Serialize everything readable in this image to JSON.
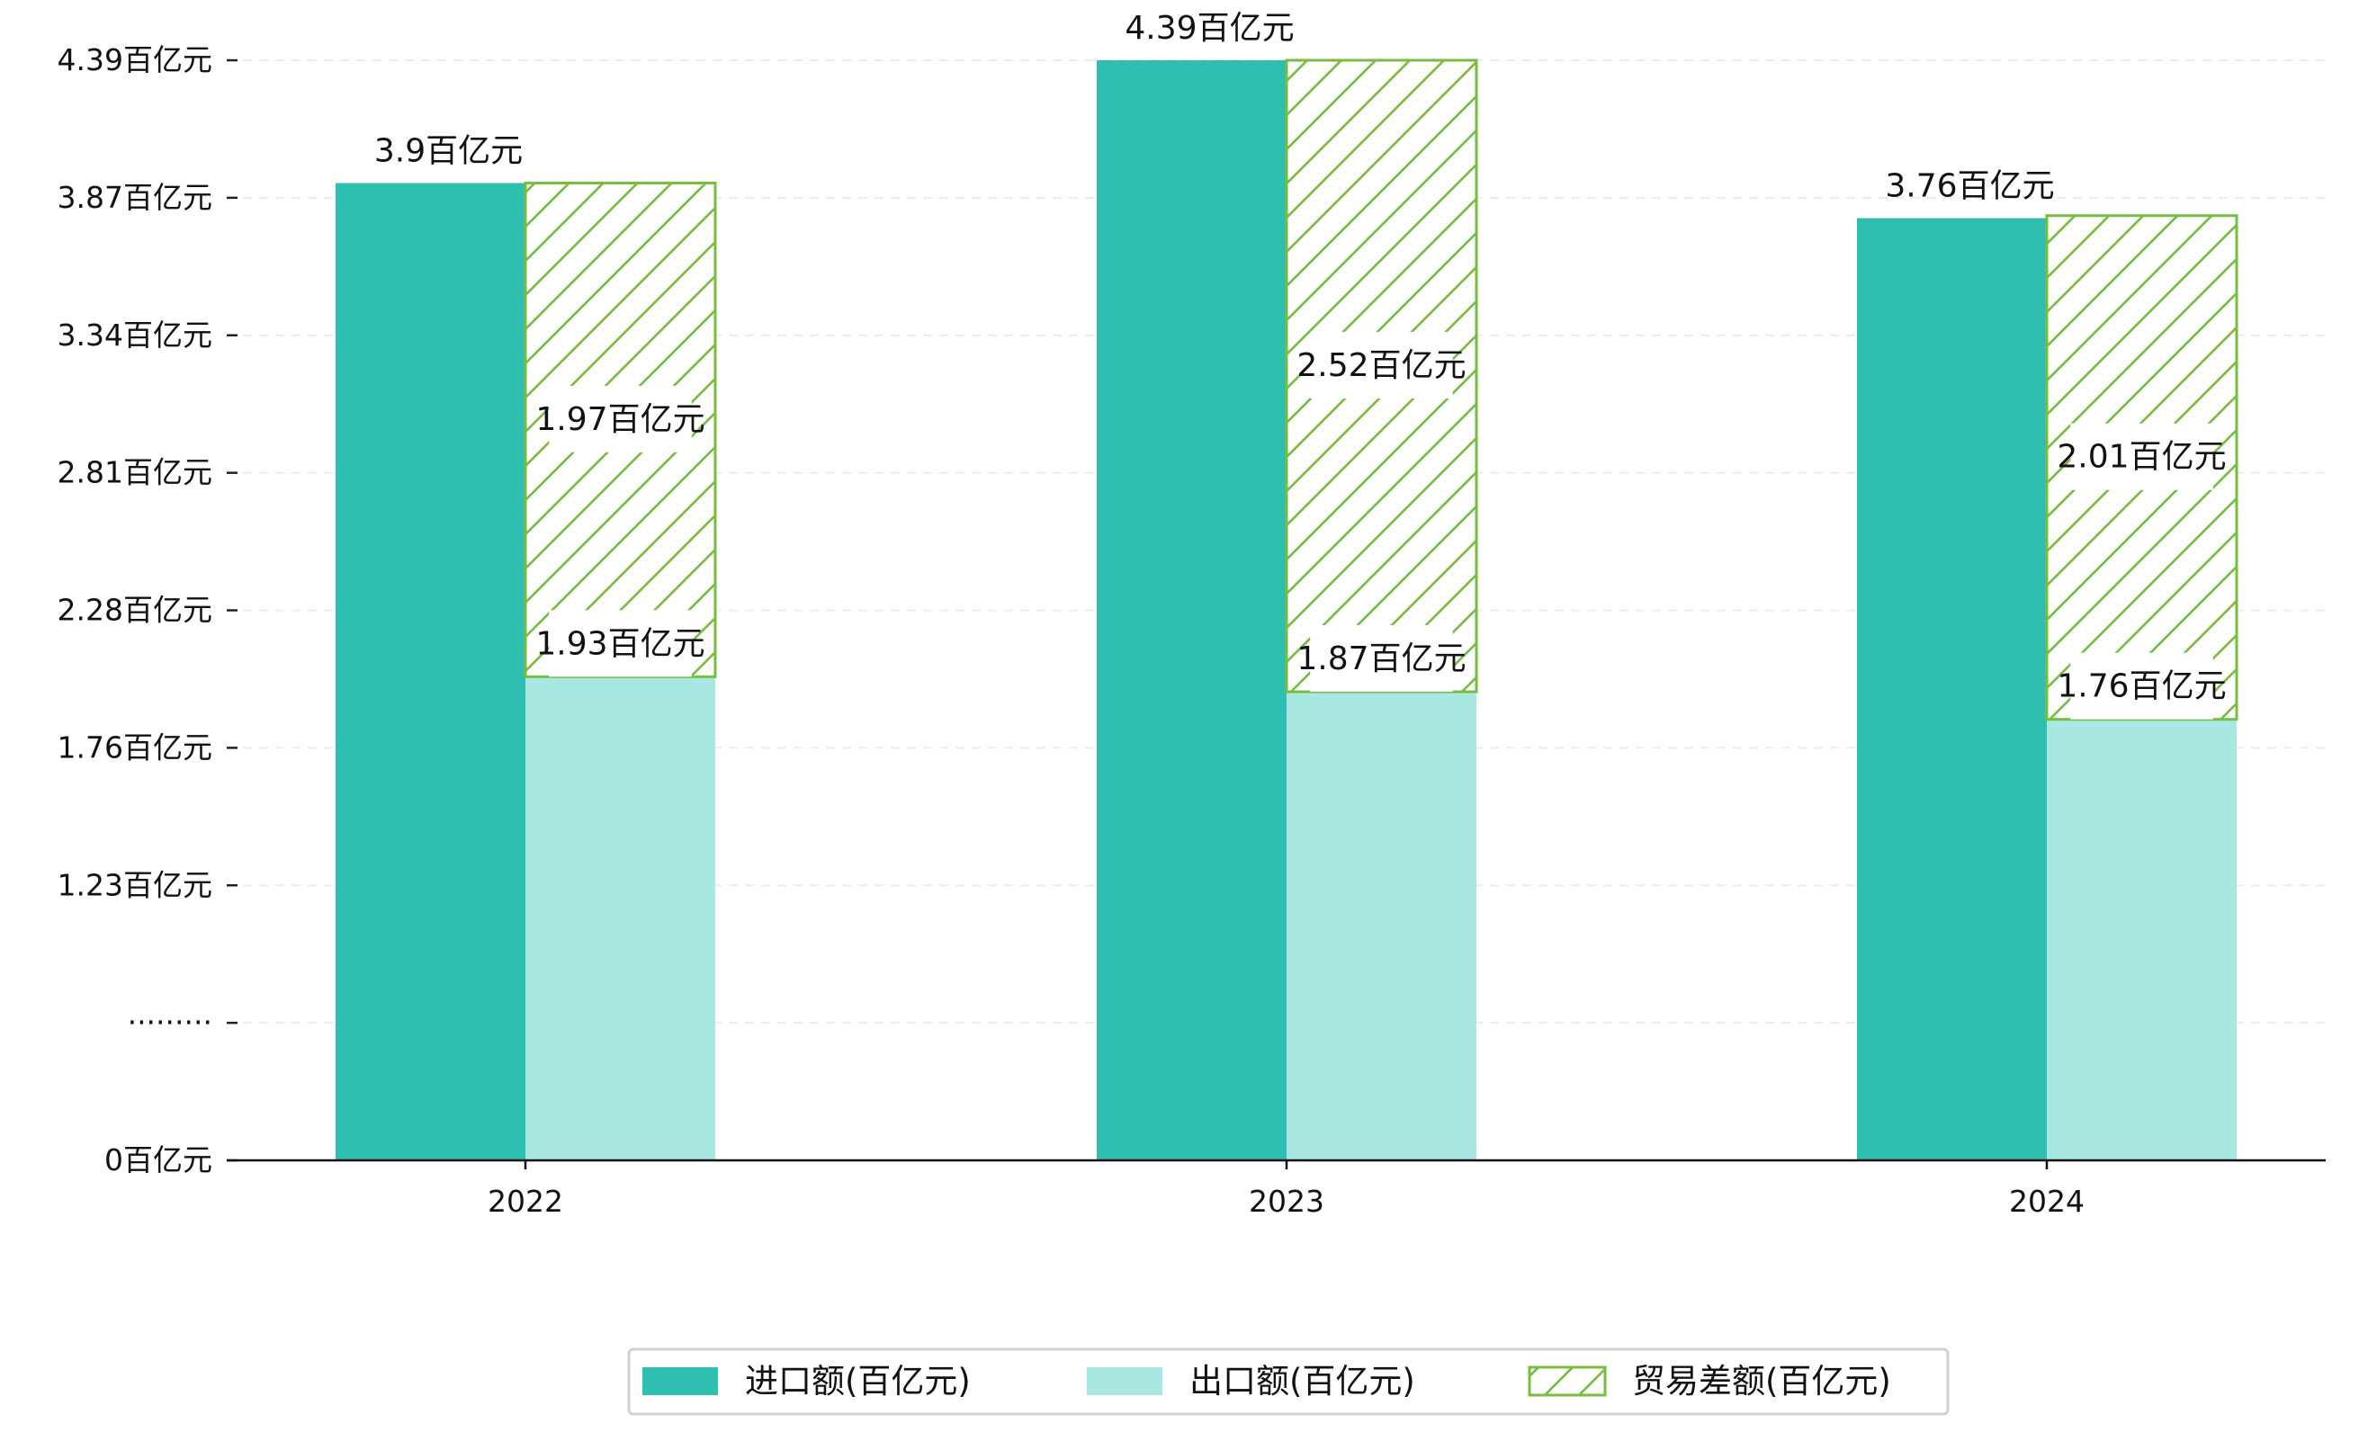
{
  "chart_data": {
    "type": "bar",
    "title": "",
    "xlabel": "",
    "ylabel": "",
    "categories": [
      "2022",
      "2023",
      "2024"
    ],
    "y_tick_labels": [
      "0百亿元",
      "·········",
      "1.23百亿元",
      "1.76百亿元",
      "2.28百亿元",
      "2.81百亿元",
      "3.34百亿元",
      "3.87百亿元",
      "4.39百亿元"
    ],
    "series": [
      {
        "name": "进口额(百亿元)",
        "values": [
          3.9,
          4.39,
          3.76
        ],
        "labels": [
          "3.9百亿元",
          "4.39百亿元",
          "3.76百亿元"
        ],
        "color": "#2FBFB1",
        "style": "solid"
      },
      {
        "name": "出口额(百亿元)",
        "values": [
          1.93,
          1.87,
          1.76
        ],
        "labels": [
          "1.93百亿元",
          "1.87百亿元",
          "1.76百亿元"
        ],
        "color": "#A9E8E2",
        "style": "solid"
      },
      {
        "name": "贸易差额(百亿元)",
        "values": [
          1.97,
          2.52,
          2.01
        ],
        "labels": [
          "1.97百亿元",
          "2.52百亿元",
          "2.01百亿元"
        ],
        "color": "#77BE3F",
        "style": "hatched",
        "stacked_on": "出口额(百亿元)"
      }
    ],
    "axis_break": true,
    "grid": true,
    "legend": "bottom-center"
  }
}
